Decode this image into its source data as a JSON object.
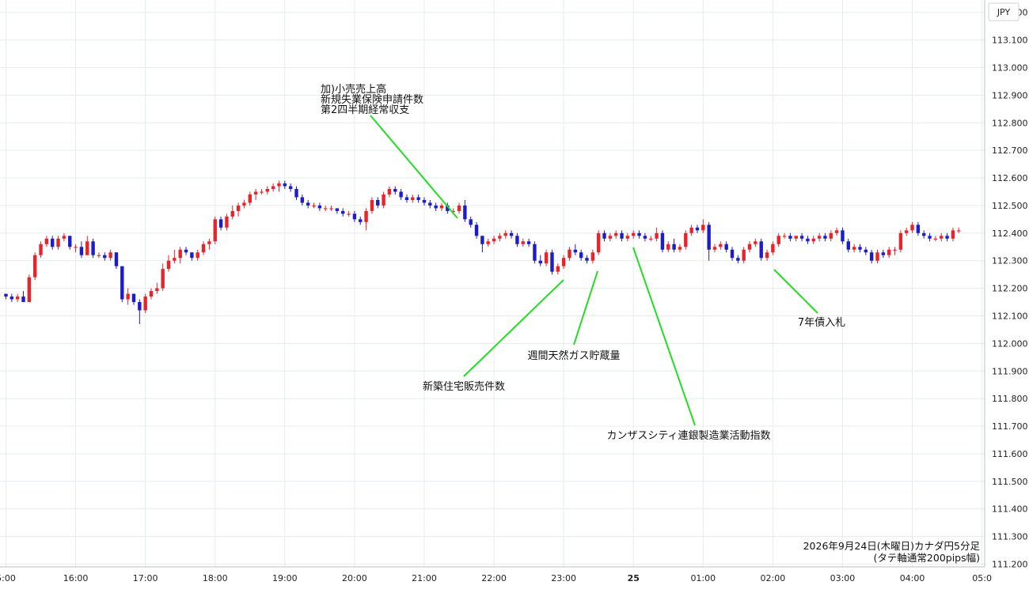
{
  "chart_data": {
    "type": "candlestick",
    "currency_label": "JPY",
    "ylim": [
      111.19,
      113.245
    ],
    "y_ticks": [
      113.2,
      113.1,
      113.0,
      112.9,
      112.8,
      112.7,
      112.6,
      112.5,
      112.4,
      112.3,
      112.2,
      112.1,
      112.0,
      111.9,
      111.8,
      111.7,
      111.6,
      111.5,
      111.4,
      111.3,
      111.2
    ],
    "y_tick_labels": [
      "113.200",
      "113.100",
      "113.000",
      "112.900",
      "112.800",
      "112.700",
      "112.600",
      "112.500",
      "112.400",
      "112.300",
      "112.200",
      "112.100",
      "112.000",
      "111.900",
      "111.800",
      "111.700",
      "111.600",
      "111.500",
      "111.400",
      "111.300",
      "111.200"
    ],
    "x_ticks": [
      {
        "label": "5:00",
        "bar": 0,
        "bold": false
      },
      {
        "label": "16:00",
        "bar": 12,
        "bold": false
      },
      {
        "label": "17:00",
        "bar": 24,
        "bold": false
      },
      {
        "label": "18:00",
        "bar": 36,
        "bold": false
      },
      {
        "label": "19:00",
        "bar": 48,
        "bold": false
      },
      {
        "label": "20:00",
        "bar": 60,
        "bold": false
      },
      {
        "label": "21:00",
        "bar": 72,
        "bold": false
      },
      {
        "label": "22:00",
        "bar": 84,
        "bold": false
      },
      {
        "label": "23:00",
        "bar": 96,
        "bold": false
      },
      {
        "label": "25",
        "bar": 108,
        "bold": true
      },
      {
        "label": "01:00",
        "bar": 120,
        "bold": false
      },
      {
        "label": "02:00",
        "bar": 132,
        "bold": false
      },
      {
        "label": "03:00",
        "bar": 144,
        "bold": false
      },
      {
        "label": "04:00",
        "bar": 156,
        "bold": false
      },
      {
        "label": "05:0",
        "bar": 168,
        "bold": false
      }
    ],
    "up_color": "#e8242b",
    "down_color": "#1c1ccc",
    "annotation_color": "#22dd22",
    "ohlc": [
      [
        112.18,
        112.18,
        112.16,
        112.17
      ],
      [
        112.17,
        112.18,
        112.15,
        112.16
      ],
      [
        112.16,
        112.18,
        112.15,
        112.17
      ],
      [
        112.17,
        112.19,
        112.15,
        112.15
      ],
      [
        112.15,
        112.25,
        112.15,
        112.24
      ],
      [
        112.24,
        112.33,
        112.23,
        112.32
      ],
      [
        112.32,
        112.37,
        112.31,
        112.36
      ],
      [
        112.36,
        112.39,
        112.35,
        112.38
      ],
      [
        112.38,
        112.39,
        112.34,
        112.35
      ],
      [
        112.35,
        112.39,
        112.34,
        112.38
      ],
      [
        112.38,
        112.4,
        112.37,
        112.39
      ],
      [
        112.39,
        112.39,
        112.34,
        112.35
      ],
      [
        112.35,
        112.36,
        112.33,
        112.35
      ],
      [
        112.35,
        112.37,
        112.31,
        112.32
      ],
      [
        112.32,
        112.39,
        112.32,
        112.37
      ],
      [
        112.37,
        112.38,
        112.31,
        112.32
      ],
      [
        112.32,
        112.33,
        112.31,
        112.32
      ],
      [
        112.32,
        112.33,
        112.3,
        112.31
      ],
      [
        112.31,
        112.34,
        112.3,
        112.33
      ],
      [
        112.33,
        112.33,
        112.27,
        112.28
      ],
      [
        112.28,
        112.28,
        112.15,
        112.16
      ],
      [
        112.16,
        112.2,
        112.14,
        112.18
      ],
      [
        112.18,
        112.18,
        112.14,
        112.15
      ],
      [
        112.15,
        112.16,
        112.07,
        112.12
      ],
      [
        112.12,
        112.18,
        112.11,
        112.17
      ],
      [
        112.17,
        112.2,
        112.16,
        112.19
      ],
      [
        112.19,
        112.22,
        112.18,
        112.2
      ],
      [
        112.2,
        112.29,
        112.19,
        112.27
      ],
      [
        112.27,
        112.32,
        112.26,
        112.3
      ],
      [
        112.3,
        112.34,
        112.29,
        112.31
      ],
      [
        112.31,
        112.35,
        112.29,
        112.34
      ],
      [
        112.34,
        112.35,
        112.32,
        112.33
      ],
      [
        112.33,
        112.33,
        112.3,
        112.31
      ],
      [
        112.31,
        112.34,
        112.3,
        112.33
      ],
      [
        112.33,
        112.37,
        112.32,
        112.36
      ],
      [
        112.36,
        112.38,
        112.34,
        112.37
      ],
      [
        112.37,
        112.46,
        112.36,
        112.45
      ],
      [
        112.45,
        112.46,
        112.41,
        112.42
      ],
      [
        112.42,
        112.47,
        112.41,
        112.46
      ],
      [
        112.46,
        112.5,
        112.45,
        112.48
      ],
      [
        112.48,
        112.51,
        112.46,
        112.5
      ],
      [
        112.5,
        112.52,
        112.49,
        112.51
      ],
      [
        112.51,
        112.55,
        112.5,
        112.54
      ],
      [
        112.54,
        112.56,
        112.52,
        112.55
      ],
      [
        112.55,
        112.56,
        112.54,
        112.55
      ],
      [
        112.55,
        112.57,
        112.54,
        112.56
      ],
      [
        112.56,
        112.58,
        112.55,
        112.57
      ],
      [
        112.57,
        112.59,
        112.55,
        112.58
      ],
      [
        112.58,
        112.59,
        112.56,
        112.57
      ],
      [
        112.57,
        112.58,
        112.55,
        112.56
      ],
      [
        112.56,
        112.57,
        112.52,
        112.53
      ],
      [
        112.53,
        112.54,
        112.5,
        112.51
      ],
      [
        112.51,
        112.52,
        112.49,
        112.5
      ],
      [
        112.5,
        112.51,
        112.49,
        112.5
      ],
      [
        112.5,
        112.51,
        112.48,
        112.49
      ],
      [
        112.49,
        112.5,
        112.48,
        112.49
      ],
      [
        112.49,
        112.5,
        112.48,
        112.49
      ],
      [
        112.49,
        112.49,
        112.47,
        112.48
      ],
      [
        112.48,
        112.49,
        112.46,
        112.47
      ],
      [
        112.47,
        112.48,
        112.46,
        112.47
      ],
      [
        112.47,
        112.48,
        112.44,
        112.45
      ],
      [
        112.45,
        112.46,
        112.43,
        112.44
      ],
      [
        112.44,
        112.49,
        112.41,
        112.48
      ],
      [
        112.48,
        112.53,
        112.47,
        112.52
      ],
      [
        112.52,
        112.53,
        112.49,
        112.5
      ],
      [
        112.5,
        112.55,
        112.49,
        112.54
      ],
      [
        112.54,
        112.57,
        112.53,
        112.56
      ],
      [
        112.56,
        112.57,
        112.54,
        112.55
      ],
      [
        112.55,
        112.56,
        112.52,
        112.53
      ],
      [
        112.53,
        112.54,
        112.51,
        112.52
      ],
      [
        112.52,
        112.54,
        112.51,
        112.53
      ],
      [
        112.53,
        112.54,
        112.51,
        112.52
      ],
      [
        112.52,
        112.53,
        112.5,
        112.51
      ],
      [
        112.51,
        112.52,
        112.49,
        112.5
      ],
      [
        112.5,
        112.51,
        112.48,
        112.49
      ],
      [
        112.49,
        112.51,
        112.48,
        112.5
      ],
      [
        112.5,
        112.51,
        112.47,
        112.48
      ],
      [
        112.48,
        112.49,
        112.47,
        112.48
      ],
      [
        112.48,
        112.51,
        112.47,
        112.5
      ],
      [
        112.5,
        112.52,
        112.44,
        112.45
      ],
      [
        112.45,
        112.46,
        112.42,
        112.43
      ],
      [
        112.43,
        112.44,
        112.38,
        112.39
      ],
      [
        112.39,
        112.39,
        112.33,
        112.36
      ],
      [
        112.36,
        112.38,
        112.35,
        112.37
      ],
      [
        112.37,
        112.39,
        112.36,
        112.38
      ],
      [
        112.38,
        112.4,
        112.37,
        112.39
      ],
      [
        112.39,
        112.41,
        112.38,
        112.4
      ],
      [
        112.4,
        112.41,
        112.38,
        112.39
      ],
      [
        112.39,
        112.4,
        112.35,
        112.36
      ],
      [
        112.36,
        112.38,
        112.35,
        112.37
      ],
      [
        112.37,
        112.38,
        112.35,
        112.36
      ],
      [
        112.36,
        112.37,
        112.29,
        112.3
      ],
      [
        112.3,
        112.32,
        112.28,
        112.29
      ],
      [
        112.29,
        112.34,
        112.28,
        112.33
      ],
      [
        112.33,
        112.34,
        112.25,
        112.26
      ],
      [
        112.26,
        112.29,
        112.25,
        112.28
      ],
      [
        112.28,
        112.32,
        112.27,
        112.31
      ],
      [
        112.31,
        112.35,
        112.3,
        112.34
      ],
      [
        112.34,
        112.36,
        112.32,
        112.33
      ],
      [
        112.33,
        112.34,
        112.3,
        112.31
      ],
      [
        112.31,
        112.32,
        112.29,
        112.3
      ],
      [
        112.3,
        112.34,
        112.29,
        112.33
      ],
      [
        112.33,
        112.41,
        112.32,
        112.4
      ],
      [
        112.4,
        112.41,
        112.37,
        112.38
      ],
      [
        112.38,
        112.4,
        112.37,
        112.39
      ],
      [
        112.39,
        112.41,
        112.38,
        112.4
      ],
      [
        112.4,
        112.41,
        112.37,
        112.38
      ],
      [
        112.38,
        112.4,
        112.37,
        112.39
      ],
      [
        112.39,
        112.41,
        112.38,
        112.4
      ],
      [
        112.4,
        112.41,
        112.38,
        112.39
      ],
      [
        112.39,
        112.4,
        112.37,
        112.38
      ],
      [
        112.38,
        112.39,
        112.37,
        112.38
      ],
      [
        112.38,
        112.42,
        112.37,
        112.4
      ],
      [
        112.4,
        112.41,
        112.33,
        112.34
      ],
      [
        112.34,
        112.37,
        112.33,
        112.36
      ],
      [
        112.36,
        112.38,
        112.33,
        112.34
      ],
      [
        112.34,
        112.36,
        112.33,
        112.35
      ],
      [
        112.35,
        112.41,
        112.34,
        112.4
      ],
      [
        112.4,
        112.43,
        112.39,
        112.42
      ],
      [
        112.42,
        112.43,
        112.4,
        112.41
      ],
      [
        112.41,
        112.45,
        112.4,
        112.43
      ],
      [
        112.43,
        112.44,
        112.3,
        112.34
      ],
      [
        112.34,
        112.36,
        112.33,
        112.35
      ],
      [
        112.35,
        112.37,
        112.34,
        112.36
      ],
      [
        112.36,
        112.37,
        112.33,
        112.34
      ],
      [
        112.34,
        112.35,
        112.3,
        112.31
      ],
      [
        112.31,
        112.32,
        112.29,
        112.3
      ],
      [
        112.3,
        112.35,
        112.29,
        112.34
      ],
      [
        112.34,
        112.37,
        112.33,
        112.36
      ],
      [
        112.36,
        112.38,
        112.35,
        112.37
      ],
      [
        112.37,
        112.38,
        112.3,
        112.31
      ],
      [
        112.31,
        112.34,
        112.3,
        112.33
      ],
      [
        112.33,
        112.37,
        112.32,
        112.36
      ],
      [
        112.36,
        112.4,
        112.35,
        112.39
      ],
      [
        112.39,
        112.4,
        112.38,
        112.39
      ],
      [
        112.39,
        112.4,
        112.37,
        112.38
      ],
      [
        112.38,
        112.39,
        112.37,
        112.39
      ],
      [
        112.39,
        112.4,
        112.37,
        112.38
      ],
      [
        112.38,
        112.39,
        112.36,
        112.37
      ],
      [
        112.37,
        112.39,
        112.36,
        112.38
      ],
      [
        112.38,
        112.4,
        112.37,
        112.39
      ],
      [
        112.39,
        112.4,
        112.37,
        112.38
      ],
      [
        112.38,
        112.41,
        112.37,
        112.4
      ],
      [
        112.4,
        112.42,
        112.39,
        112.41
      ],
      [
        112.41,
        112.42,
        112.36,
        112.37
      ],
      [
        112.37,
        112.38,
        112.33,
        112.34
      ],
      [
        112.34,
        112.36,
        112.33,
        112.35
      ],
      [
        112.35,
        112.36,
        112.33,
        112.34
      ],
      [
        112.34,
        112.35,
        112.32,
        112.33
      ],
      [
        112.33,
        112.34,
        112.29,
        112.3
      ],
      [
        112.3,
        112.34,
        112.29,
        112.33
      ],
      [
        112.33,
        112.34,
        112.31,
        112.32
      ],
      [
        112.32,
        112.35,
        112.31,
        112.34
      ],
      [
        112.34,
        112.35,
        112.32,
        112.34
      ],
      [
        112.34,
        112.41,
        112.33,
        112.4
      ],
      [
        112.4,
        112.42,
        112.39,
        112.41
      ],
      [
        112.41,
        112.44,
        112.4,
        112.43
      ],
      [
        112.43,
        112.44,
        112.39,
        112.4
      ],
      [
        112.4,
        112.41,
        112.38,
        112.39
      ],
      [
        112.39,
        112.4,
        112.37,
        112.38
      ],
      [
        112.38,
        112.39,
        112.37,
        112.38
      ],
      [
        112.38,
        112.4,
        112.37,
        112.39
      ],
      [
        112.39,
        112.4,
        112.37,
        112.38
      ],
      [
        112.38,
        112.42,
        112.37,
        112.41
      ],
      [
        112.41,
        112.42,
        112.4,
        112.41
      ]
    ],
    "annotations": [
      {
        "lines": [
          "加)小売売上高",
          "新規失業保険申請件数",
          "第2四半期経常収支"
        ],
        "bar": 79
      },
      {
        "lines": [
          "新築住宅販売件数"
        ],
        "bar": 98
      },
      {
        "lines": [
          "週間天然ガス貯蔵量"
        ],
        "bar": 104
      },
      {
        "lines": [
          "カンザスシティ連銀製造業活動指数"
        ],
        "bar": 108
      },
      {
        "lines": [
          "7年債入札"
        ],
        "bar": 132
      }
    ],
    "note": [
      "2026年9月24日(木曜日)カナダ円5分足",
      "(タテ軸通常200pips幅)"
    ]
  }
}
